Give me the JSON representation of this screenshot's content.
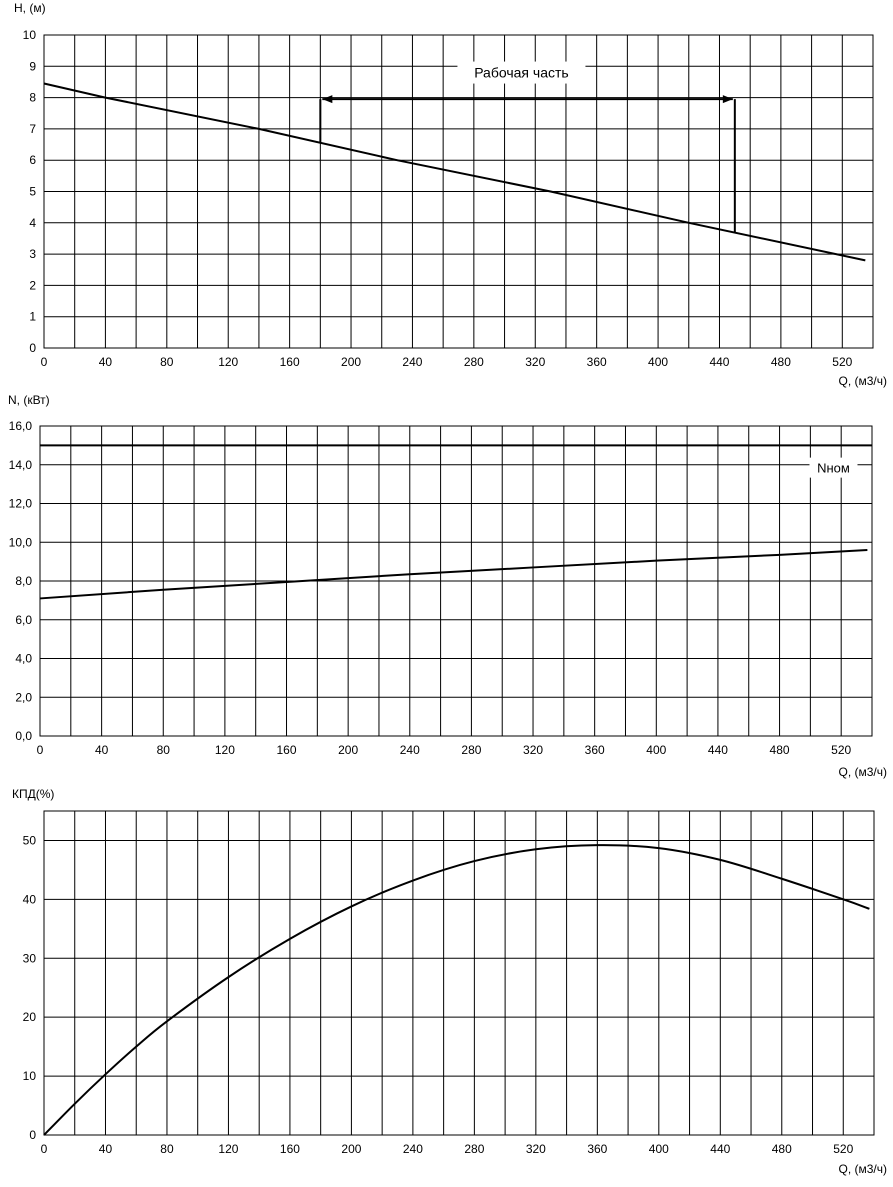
{
  "chart_data": [
    {
      "type": "line",
      "ylabel": "H, (м)",
      "xlabel": "Q, (м3/ч)",
      "xlim": [
        0,
        540
      ],
      "ylim": [
        0,
        10
      ],
      "x_ticks": [
        0,
        40,
        80,
        120,
        160,
        200,
        240,
        280,
        320,
        360,
        400,
        440,
        480,
        520
      ],
      "y_ticks": [
        0,
        1,
        2,
        3,
        4,
        5,
        6,
        7,
        8,
        9,
        10
      ],
      "y_tick_labels": [
        "0",
        "1",
        "2",
        "3",
        "4",
        "5",
        "6",
        "7",
        "8",
        "9",
        "10"
      ],
      "grid": true,
      "series": [
        {
          "x": [
            0,
            40,
            140,
            230,
            330,
            420,
            535
          ],
          "y": [
            8.45,
            8.0,
            7.0,
            6.0,
            5.0,
            4.0,
            2.8
          ]
        }
      ],
      "annotations": [
        {
          "text": "Рабочая часть",
          "x": 311,
          "y": 8.8,
          "range": [
            180,
            450
          ],
          "bar_y": 7.95
        }
      ]
    },
    {
      "type": "line",
      "ylabel": "N, (кВт)",
      "xlabel": "Q, (м3/ч)",
      "xlim": [
        0,
        540
      ],
      "ylim": [
        0,
        16
      ],
      "x_ticks": [
        0,
        40,
        80,
        120,
        160,
        200,
        240,
        280,
        320,
        360,
        400,
        440,
        480,
        520
      ],
      "y_ticks": [
        0,
        2,
        4,
        6,
        8,
        10,
        12,
        14,
        16
      ],
      "y_tick_labels": [
        "0,0",
        "2,0",
        "4,0",
        "6,0",
        "8,0",
        "10,0",
        "12,0",
        "14,0",
        "16,0"
      ],
      "grid": true,
      "series": [
        {
          "x": [
            0,
            80,
            160,
            240,
            320,
            400,
            480,
            537
          ],
          "y": [
            7.1,
            7.55,
            7.95,
            8.35,
            8.7,
            9.05,
            9.35,
            9.6
          ]
        },
        {
          "name": "Nном",
          "x": [
            0,
            540
          ],
          "y": [
            15.0,
            15.0
          ]
        }
      ],
      "annotations": [
        {
          "text": "Nном",
          "x": 515,
          "y": 13.8
        }
      ]
    },
    {
      "type": "line",
      "ylabel": "КПД(%)",
      "xlabel": "Q, (м3/ч)",
      "xlim": [
        0,
        540
      ],
      "ylim": [
        0,
        55
      ],
      "x_ticks": [
        0,
        40,
        80,
        120,
        160,
        200,
        240,
        280,
        320,
        360,
        400,
        440,
        480,
        520
      ],
      "y_ticks": [
        0,
        10,
        20,
        30,
        40,
        50
      ],
      "y_tick_labels": [
        "0",
        "10",
        "20",
        "30",
        "40",
        "50"
      ],
      "grid": true,
      "series": [
        {
          "x": [
            0,
            20,
            40,
            60,
            80,
            120,
            160,
            200,
            240,
            280,
            320,
            360,
            400,
            440,
            480,
            520,
            537
          ],
          "y": [
            0,
            5.3,
            10.3,
            15.0,
            19.3,
            26.8,
            33.3,
            38.8,
            43.2,
            46.5,
            48.5,
            49.2,
            48.7,
            46.7,
            43.5,
            40.0,
            38.4
          ]
        }
      ]
    }
  ]
}
